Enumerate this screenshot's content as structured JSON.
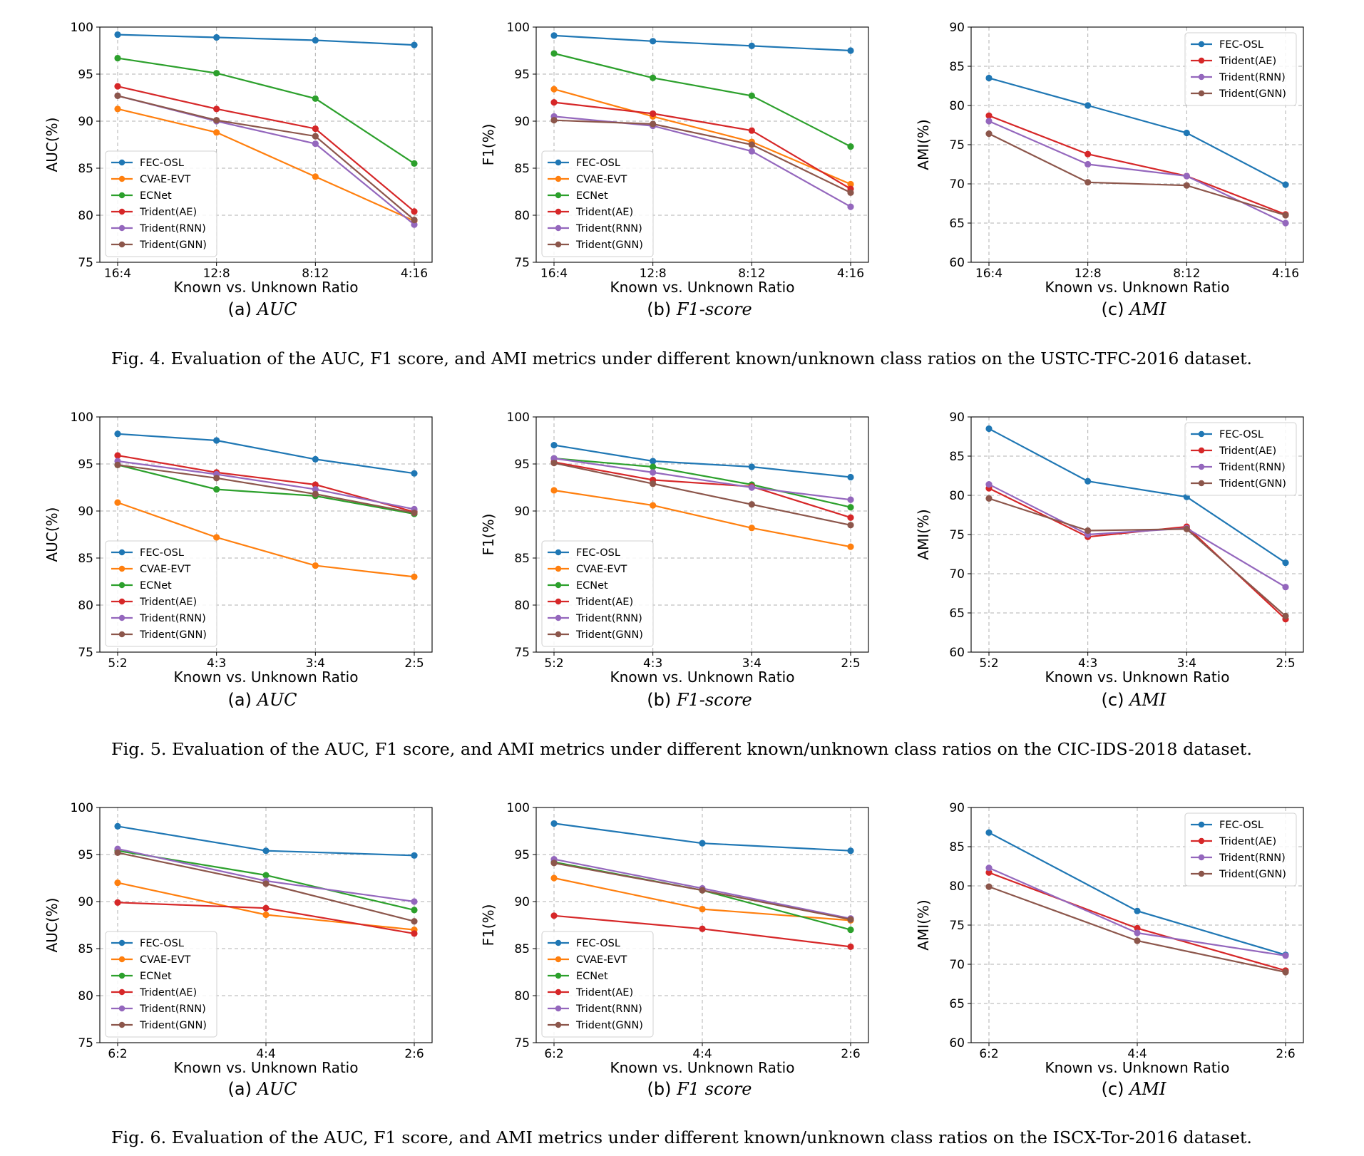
{
  "colors": {
    "FEC-OSL": "#1f77b4",
    "CVAE-EVT": "#ff7f0e",
    "ECNet": "#2ca02c",
    "Trident(AE)": "#d62728",
    "Trident(RNN)": "#9467bd",
    "Trident(GNN)": "#8c564b"
  },
  "figures": [
    {
      "caption": "Fig. 4.  Evaluation of the AUC, F1 score, and AMI metrics under different known/unknown class ratios on the USTC-TFC-2016 dataset.",
      "panels": [
        {
          "paren": "(a)",
          "name": "AUC"
        },
        {
          "paren": "(b)",
          "name": "F1-score"
        },
        {
          "paren": "(c)",
          "name": "AMI"
        }
      ]
    },
    {
      "caption": "Fig. 5.  Evaluation of the AUC, F1 score, and AMI metrics under different known/unknown class ratios on the CIC-IDS-2018 dataset.",
      "panels": [
        {
          "paren": "(a)",
          "name": "AUC"
        },
        {
          "paren": "(b)",
          "name": "F1-score"
        },
        {
          "paren": "(c)",
          "name": "AMI"
        }
      ]
    },
    {
      "caption": "Fig. 6.  Evaluation of the AUC, F1 score, and AMI metrics under different known/unknown class ratios on the ISCX-Tor-2016 dataset.",
      "panels": [
        {
          "paren": "(a)",
          "name": "AUC"
        },
        {
          "paren": "(b)",
          "name": "F1 score"
        },
        {
          "paren": "(c)",
          "name": "AMI"
        }
      ]
    }
  ],
  "chart_data": [
    {
      "id": "fig4a",
      "type": "line",
      "xlabel": "Known vs. Unknown Ratio",
      "ylabel": "AUC(%)",
      "categories": [
        "16:4",
        "12:8",
        "8:12",
        "4:16"
      ],
      "ylim": [
        75,
        100
      ],
      "yticks": [
        75,
        80,
        85,
        90,
        95,
        100
      ],
      "legend": "lower-left",
      "series": [
        {
          "name": "FEC-OSL",
          "values": [
            99.2,
            98.9,
            98.6,
            98.1
          ]
        },
        {
          "name": "CVAE-EVT",
          "values": [
            91.3,
            88.8,
            84.1,
            79.4
          ]
        },
        {
          "name": "ECNet",
          "values": [
            96.7,
            95.1,
            92.4,
            85.5
          ]
        },
        {
          "name": "Trident(AE)",
          "values": [
            93.7,
            91.3,
            89.2,
            80.4
          ]
        },
        {
          "name": "Trident(RNN)",
          "values": [
            92.7,
            90.0,
            87.6,
            79.0
          ]
        },
        {
          "name": "Trident(GNN)",
          "values": [
            92.7,
            90.1,
            88.4,
            79.5
          ]
        }
      ]
    },
    {
      "id": "fig4b",
      "type": "line",
      "xlabel": "Known vs. Unknown Ratio",
      "ylabel": "F1(%)",
      "categories": [
        "16:4",
        "12:8",
        "8:12",
        "4:16"
      ],
      "ylim": [
        75,
        100
      ],
      "yticks": [
        75,
        80,
        85,
        90,
        95,
        100
      ],
      "legend": "lower-left",
      "series": [
        {
          "name": "FEC-OSL",
          "values": [
            99.1,
            98.5,
            98.0,
            97.5
          ]
        },
        {
          "name": "CVAE-EVT",
          "values": [
            93.4,
            90.5,
            87.8,
            83.3
          ]
        },
        {
          "name": "ECNet",
          "values": [
            97.2,
            94.6,
            92.7,
            87.3
          ]
        },
        {
          "name": "Trident(AE)",
          "values": [
            92.0,
            90.8,
            89.0,
            82.8
          ]
        },
        {
          "name": "Trident(RNN)",
          "values": [
            90.5,
            89.5,
            86.8,
            80.9
          ]
        },
        {
          "name": "Trident(GNN)",
          "values": [
            90.1,
            89.7,
            87.5,
            82.4
          ]
        }
      ]
    },
    {
      "id": "fig4c",
      "type": "line",
      "xlabel": "Known vs. Unknown Ratio",
      "ylabel": "AMI(%)",
      "categories": [
        "16:4",
        "12:8",
        "8:12",
        "4:16"
      ],
      "ylim": [
        60,
        90
      ],
      "yticks": [
        60,
        65,
        70,
        75,
        80,
        85,
        90
      ],
      "legend": "upper-right",
      "series": [
        {
          "name": "FEC-OSL",
          "values": [
            83.5,
            80.0,
            76.5,
            69.9
          ]
        },
        {
          "name": "Trident(AE)",
          "values": [
            78.7,
            73.8,
            71.0,
            66.1
          ]
        },
        {
          "name": "Trident(RNN)",
          "values": [
            78.0,
            72.5,
            71.0,
            65.0
          ]
        },
        {
          "name": "Trident(GNN)",
          "values": [
            76.4,
            70.2,
            69.8,
            66.0
          ]
        }
      ]
    },
    {
      "id": "fig5a",
      "type": "line",
      "xlabel": "Known vs. Unknown Ratio",
      "ylabel": "AUC(%)",
      "categories": [
        "5:2",
        "4:3",
        "3:4",
        "2:5"
      ],
      "ylim": [
        75,
        100
      ],
      "yticks": [
        75,
        80,
        85,
        90,
        95,
        100
      ],
      "legend": "lower-left",
      "series": [
        {
          "name": "FEC-OSL",
          "values": [
            98.2,
            97.5,
            95.5,
            94.0
          ]
        },
        {
          "name": "CVAE-EVT",
          "values": [
            90.9,
            87.2,
            84.2,
            83.0
          ]
        },
        {
          "name": "ECNet",
          "values": [
            94.9,
            92.3,
            91.6,
            89.7
          ]
        },
        {
          "name": "Trident(AE)",
          "values": [
            95.9,
            94.1,
            92.8,
            89.9
          ]
        },
        {
          "name": "Trident(RNN)",
          "values": [
            95.3,
            93.9,
            92.3,
            90.2
          ]
        },
        {
          "name": "Trident(GNN)",
          "values": [
            94.9,
            93.5,
            91.8,
            89.8
          ]
        }
      ]
    },
    {
      "id": "fig5b",
      "type": "line",
      "xlabel": "Known vs. Unknown Ratio",
      "ylabel": "F1(%)",
      "categories": [
        "5:2",
        "4:3",
        "3:4",
        "2:5"
      ],
      "ylim": [
        75,
        100
      ],
      "yticks": [
        75,
        80,
        85,
        90,
        95,
        100
      ],
      "legend": "lower-left",
      "series": [
        {
          "name": "FEC-OSL",
          "values": [
            97.0,
            95.3,
            94.7,
            93.6
          ]
        },
        {
          "name": "CVAE-EVT",
          "values": [
            92.2,
            90.6,
            88.2,
            86.2
          ]
        },
        {
          "name": "ECNet",
          "values": [
            95.6,
            94.7,
            92.8,
            90.4
          ]
        },
        {
          "name": "Trident(AE)",
          "values": [
            95.2,
            93.3,
            92.6,
            89.3
          ]
        },
        {
          "name": "Trident(RNN)",
          "values": [
            95.6,
            94.1,
            92.5,
            91.2
          ]
        },
        {
          "name": "Trident(GNN)",
          "values": [
            95.1,
            92.9,
            90.7,
            88.5
          ]
        }
      ]
    },
    {
      "id": "fig5c",
      "type": "line",
      "xlabel": "Known vs. Unknown Ratio",
      "ylabel": "AMI(%)",
      "categories": [
        "5:2",
        "4:3",
        "3:4",
        "2:5"
      ],
      "ylim": [
        60,
        90
      ],
      "yticks": [
        60,
        65,
        70,
        75,
        80,
        85,
        90
      ],
      "legend": "upper-right",
      "series": [
        {
          "name": "FEC-OSL",
          "values": [
            88.5,
            81.8,
            79.8,
            71.4
          ]
        },
        {
          "name": "Trident(AE)",
          "values": [
            80.9,
            74.7,
            76.0,
            64.2
          ]
        },
        {
          "name": "Trident(RNN)",
          "values": [
            81.4,
            75.0,
            75.8,
            68.3
          ]
        },
        {
          "name": "Trident(GNN)",
          "values": [
            79.6,
            75.5,
            75.7,
            64.6
          ]
        }
      ]
    },
    {
      "id": "fig6a",
      "type": "line",
      "xlabel": "Known vs. Unknown Ratio",
      "ylabel": "AUC(%)",
      "categories": [
        "6:2",
        "4:4",
        "2:6"
      ],
      "ylim": [
        75,
        100
      ],
      "yticks": [
        75,
        80,
        85,
        90,
        95,
        100
      ],
      "legend": "lower-left",
      "series": [
        {
          "name": "FEC-OSL",
          "values": [
            98.0,
            95.4,
            94.9
          ]
        },
        {
          "name": "CVAE-EVT",
          "values": [
            92.0,
            88.6,
            87.0
          ]
        },
        {
          "name": "ECNet",
          "values": [
            95.4,
            92.8,
            89.1
          ]
        },
        {
          "name": "Trident(AE)",
          "values": [
            89.9,
            89.3,
            86.6
          ]
        },
        {
          "name": "Trident(RNN)",
          "values": [
            95.6,
            92.2,
            90.0
          ]
        },
        {
          "name": "Trident(GNN)",
          "values": [
            95.2,
            91.9,
            87.9
          ]
        }
      ]
    },
    {
      "id": "fig6b",
      "type": "line",
      "xlabel": "Known vs. Unknown Ratio",
      "ylabel": "F1(%)",
      "categories": [
        "6:2",
        "4:4",
        "2:6"
      ],
      "ylim": [
        75,
        100
      ],
      "yticks": [
        75,
        80,
        85,
        90,
        95,
        100
      ],
      "legend": "lower-left",
      "series": [
        {
          "name": "FEC-OSL",
          "values": [
            98.3,
            96.2,
            95.4
          ]
        },
        {
          "name": "CVAE-EVT",
          "values": [
            92.5,
            89.2,
            88.0
          ]
        },
        {
          "name": "ECNet",
          "values": [
            94.2,
            91.2,
            87.0
          ]
        },
        {
          "name": "Trident(AE)",
          "values": [
            88.5,
            87.1,
            85.2
          ]
        },
        {
          "name": "Trident(RNN)",
          "values": [
            94.5,
            91.4,
            88.2
          ]
        },
        {
          "name": "Trident(GNN)",
          "values": [
            94.1,
            91.2,
            88.1
          ]
        }
      ]
    },
    {
      "id": "fig6c",
      "type": "line",
      "xlabel": "Known vs. Unknown Ratio",
      "ylabel": "AMI(%)",
      "categories": [
        "6:2",
        "4:4",
        "2:6"
      ],
      "ylim": [
        60,
        90
      ],
      "yticks": [
        60,
        65,
        70,
        75,
        80,
        85,
        90
      ],
      "legend": "upper-right",
      "series": [
        {
          "name": "FEC-OSL",
          "values": [
            86.8,
            76.8,
            71.2
          ]
        },
        {
          "name": "Trident(AE)",
          "values": [
            81.7,
            74.6,
            69.2
          ]
        },
        {
          "name": "Trident(RNN)",
          "values": [
            82.3,
            74.0,
            71.1
          ]
        },
        {
          "name": "Trident(GNN)",
          "values": [
            79.9,
            73.0,
            69.0
          ]
        }
      ]
    }
  ]
}
